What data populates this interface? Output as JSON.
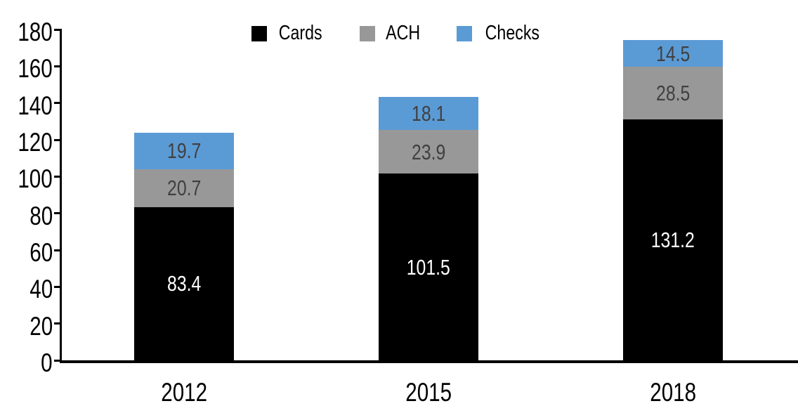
{
  "chart_data": {
    "type": "bar",
    "stacked": true,
    "title": "",
    "xlabel": "",
    "ylabel": "",
    "categories": [
      "2012",
      "2015",
      "2018"
    ],
    "series": [
      {
        "name": "Cards",
        "color": "#000000",
        "label_color": "#ffffff",
        "values": [
          83.4,
          101.5,
          131.2
        ]
      },
      {
        "name": "ACH",
        "color": "#989898",
        "label_color": "#404040",
        "values": [
          20.7,
          23.9,
          28.5
        ]
      },
      {
        "name": "Checks",
        "color": "#5B9BD5",
        "label_color": "#404040",
        "values": [
          19.7,
          18.1,
          14.5
        ]
      }
    ],
    "totals": [
      123.8,
      143.5,
      174.2
    ],
    "ylim": [
      0,
      180
    ],
    "yticks": [
      0,
      20,
      40,
      60,
      80,
      100,
      120,
      140,
      160,
      180
    ],
    "value_decimals": 1,
    "grid": false,
    "legend_position": "top",
    "data_labels": true,
    "axis_color": "#000000",
    "background_color": "#ffffff"
  }
}
